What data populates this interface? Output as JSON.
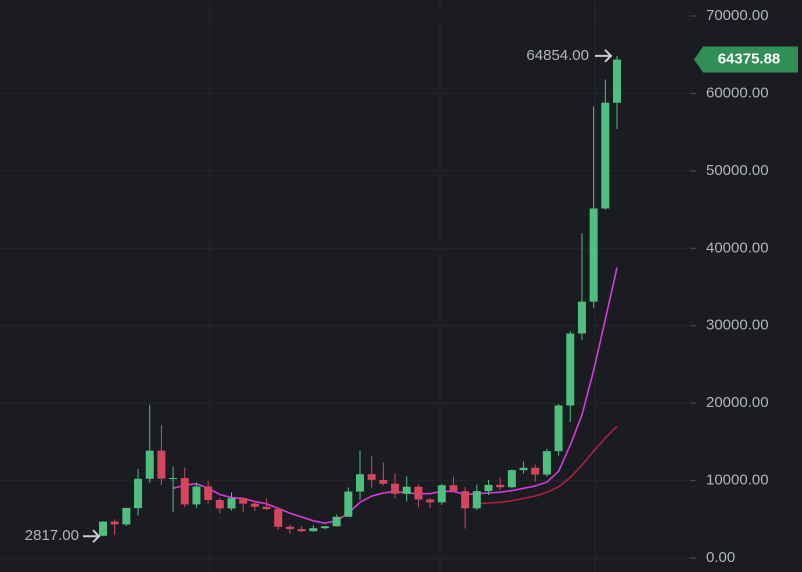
{
  "chart_data": {
    "type": "candlestick",
    "open": [
      2870,
      4700,
      4340,
      6440,
      10230,
      13860,
      10260,
      10330,
      6920,
      9240,
      7490,
      6400,
      7730,
      7020,
      6620,
      6320,
      4040,
      3740,
      3460,
      3850,
      4100,
      5320,
      8580,
      10820,
      10090,
      9590,
      8290,
      9200,
      7560,
      7190,
      9390,
      8630,
      6420,
      8640,
      9450,
      9140,
      11350,
      11650,
      10780,
      13800,
      19700,
      28990,
      33110,
      45140,
      58800
    ],
    "high": [
      4740,
      5000,
      6470,
      11520,
      19800,
      17180,
      11790,
      11690,
      9770,
      9990,
      7770,
      8490,
      7760,
      7400,
      7680,
      6570,
      4300,
      4100,
      4200,
      4110,
      5600,
      9090,
      13880,
      13150,
      12330,
      10940,
      10540,
      9510,
      7740,
      9580,
      10500,
      9200,
      9480,
      10070,
      10380,
      11450,
      12470,
      12070,
      14100,
      19890,
      29300,
      41950,
      58350,
      61800,
      64854
    ],
    "low": [
      2817,
      2970,
      4110,
      5500,
      9700,
      9400,
      5970,
      6560,
      6440,
      7030,
      5760,
      6110,
      5880,
      6100,
      6200,
      3650,
      3150,
      3350,
      3390,
      3730,
      4070,
      5340,
      7500,
      9060,
      9350,
      7710,
      7300,
      6540,
      6430,
      6850,
      8470,
      3800,
      6200,
      8130,
      8830,
      8980,
      10900,
      9850,
      10530,
      13220,
      17570,
      28130,
      32300,
      45000,
      55400
    ],
    "close": [
      4700,
      4340,
      6470,
      10230,
      13860,
      10260,
      10330,
      6920,
      9240,
      7490,
      6400,
      7730,
      7020,
      6620,
      6320,
      4040,
      3740,
      3460,
      3850,
      4100,
      5320,
      8580,
      10820,
      10090,
      9590,
      8290,
      9200,
      7560,
      7190,
      9390,
      8630,
      6420,
      8640,
      9450,
      9140,
      11350,
      11650,
      10780,
      13800,
      19700,
      28990,
      33110,
      45140,
      58800,
      64375.88
    ],
    "up_color": "#4fbf7f",
    "down_color": "#d4465d",
    "lines": [
      {
        "color": "#d63be0",
        "values": [
          null,
          null,
          null,
          null,
          null,
          null,
          9000,
          9400,
          9600,
          9000,
          8200,
          7800,
          7700,
          7300,
          7000,
          6400,
          5800,
          5300,
          4800,
          4500,
          4800,
          5800,
          7200,
          8000,
          8400,
          8600,
          8400,
          8300,
          8300,
          8600,
          8600,
          8200,
          8300,
          8400,
          8500,
          8700,
          9000,
          9300,
          9800,
          11200,
          14600,
          18500,
          24200,
          30800,
          37500
        ]
      },
      {
        "color": "#b0203f",
        "values": [
          null,
          null,
          null,
          null,
          null,
          null,
          null,
          null,
          null,
          null,
          null,
          null,
          null,
          null,
          null,
          null,
          null,
          null,
          null,
          null,
          null,
          null,
          null,
          null,
          null,
          null,
          null,
          null,
          null,
          null,
          null,
          null,
          7000,
          7100,
          7200,
          7400,
          7700,
          8000,
          8500,
          9200,
          10400,
          12000,
          13800,
          15500,
          17000
        ]
      }
    ],
    "high_label": "64854.00",
    "low_label": "2817.00",
    "ylim": [
      0,
      70000
    ],
    "yticks": [
      {
        "value": 0,
        "label": "0.00"
      },
      {
        "value": 10000,
        "label": "10000.00"
      },
      {
        "value": 20000,
        "label": "20000.00"
      },
      {
        "value": 30000,
        "label": "30000.00"
      },
      {
        "value": 40000,
        "label": "40000.00"
      },
      {
        "value": 50000,
        "label": "50000.00"
      },
      {
        "value": 60000,
        "label": "60000.00"
      },
      {
        "value": 70000,
        "label": "70000.00"
      }
    ],
    "grid": true
  }
}
